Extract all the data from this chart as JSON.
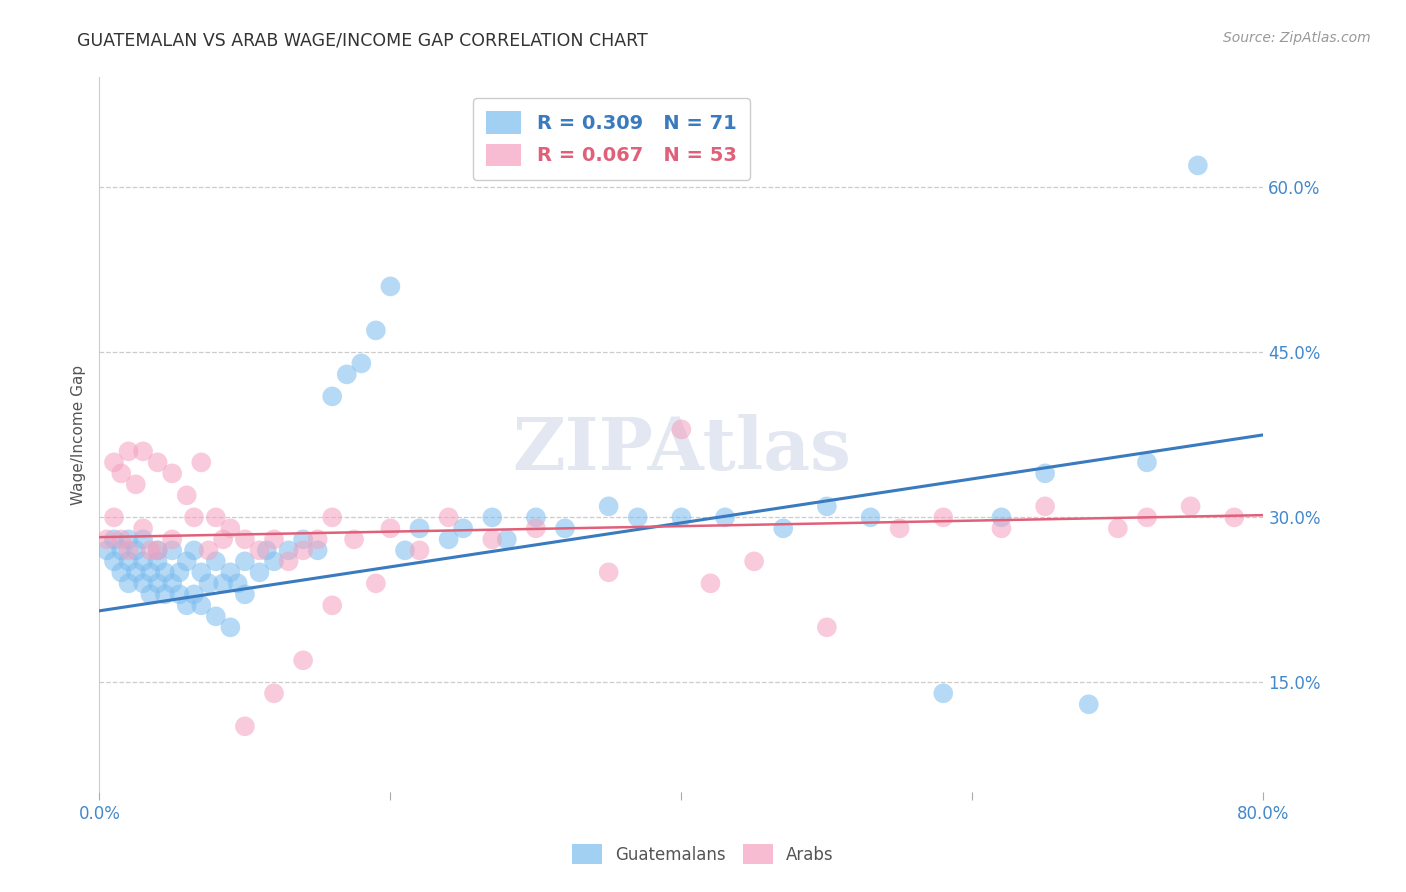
{
  "title": "GUATEMALAN VS ARAB WAGE/INCOME GAP CORRELATION CHART",
  "source": "Source: ZipAtlas.com",
  "ylabel": "Wage/Income Gap",
  "ytick_labels": [
    "15.0%",
    "30.0%",
    "45.0%",
    "60.0%"
  ],
  "ytick_values": [
    0.15,
    0.3,
    0.45,
    0.6
  ],
  "xlim": [
    0.0,
    0.8
  ],
  "ylim": [
    0.05,
    0.7
  ],
  "legend_blue_R": "R = 0.309",
  "legend_blue_N": "N = 71",
  "legend_pink_R": "R = 0.067",
  "legend_pink_N": "N = 53",
  "blue_color": "#7bbcee",
  "pink_color": "#f4a0be",
  "blue_line_color": "#3a7abf",
  "pink_line_color": "#e0607a",
  "axis_tick_color": "#4488cc",
  "watermark": "ZIPAtlas",
  "guatemalans_label": "Guatemalans",
  "arabs_label": "Arabs",
  "blue_scatter_x": [
    0.005,
    0.01,
    0.01,
    0.015,
    0.015,
    0.02,
    0.02,
    0.02,
    0.025,
    0.025,
    0.03,
    0.03,
    0.03,
    0.035,
    0.035,
    0.04,
    0.04,
    0.04,
    0.045,
    0.045,
    0.05,
    0.05,
    0.055,
    0.055,
    0.06,
    0.06,
    0.065,
    0.065,
    0.07,
    0.07,
    0.075,
    0.08,
    0.08,
    0.085,
    0.09,
    0.09,
    0.095,
    0.1,
    0.1,
    0.11,
    0.115,
    0.12,
    0.13,
    0.14,
    0.15,
    0.16,
    0.17,
    0.18,
    0.19,
    0.2,
    0.21,
    0.22,
    0.24,
    0.25,
    0.27,
    0.28,
    0.3,
    0.32,
    0.35,
    0.37,
    0.4,
    0.43,
    0.47,
    0.5,
    0.53,
    0.58,
    0.62,
    0.65,
    0.68,
    0.72,
    0.755
  ],
  "blue_scatter_y": [
    0.27,
    0.26,
    0.28,
    0.25,
    0.27,
    0.24,
    0.26,
    0.28,
    0.25,
    0.27,
    0.24,
    0.26,
    0.28,
    0.23,
    0.25,
    0.24,
    0.26,
    0.27,
    0.23,
    0.25,
    0.24,
    0.27,
    0.23,
    0.25,
    0.22,
    0.26,
    0.23,
    0.27,
    0.22,
    0.25,
    0.24,
    0.21,
    0.26,
    0.24,
    0.2,
    0.25,
    0.24,
    0.23,
    0.26,
    0.25,
    0.27,
    0.26,
    0.27,
    0.28,
    0.27,
    0.41,
    0.43,
    0.44,
    0.47,
    0.51,
    0.27,
    0.29,
    0.28,
    0.29,
    0.3,
    0.28,
    0.3,
    0.29,
    0.31,
    0.3,
    0.3,
    0.3,
    0.29,
    0.31,
    0.3,
    0.14,
    0.3,
    0.34,
    0.13,
    0.35,
    0.62
  ],
  "pink_scatter_x": [
    0.005,
    0.01,
    0.01,
    0.015,
    0.015,
    0.02,
    0.02,
    0.025,
    0.03,
    0.03,
    0.035,
    0.04,
    0.04,
    0.05,
    0.05,
    0.06,
    0.065,
    0.07,
    0.075,
    0.08,
    0.085,
    0.09,
    0.1,
    0.11,
    0.12,
    0.13,
    0.14,
    0.15,
    0.16,
    0.175,
    0.19,
    0.2,
    0.22,
    0.24,
    0.27,
    0.3,
    0.35,
    0.4,
    0.42,
    0.45,
    0.5,
    0.55,
    0.58,
    0.62,
    0.65,
    0.7,
    0.72,
    0.75,
    0.78,
    0.1,
    0.12,
    0.14,
    0.16
  ],
  "pink_scatter_y": [
    0.28,
    0.35,
    0.3,
    0.34,
    0.28,
    0.36,
    0.27,
    0.33,
    0.36,
    0.29,
    0.27,
    0.35,
    0.27,
    0.34,
    0.28,
    0.32,
    0.3,
    0.35,
    0.27,
    0.3,
    0.28,
    0.29,
    0.28,
    0.27,
    0.28,
    0.26,
    0.27,
    0.28,
    0.3,
    0.28,
    0.24,
    0.29,
    0.27,
    0.3,
    0.28,
    0.29,
    0.25,
    0.38,
    0.24,
    0.26,
    0.2,
    0.29,
    0.3,
    0.29,
    0.31,
    0.29,
    0.3,
    0.31,
    0.3,
    0.11,
    0.14,
    0.17,
    0.22
  ],
  "blue_regline_x": [
    0.0,
    0.8
  ],
  "blue_regline_y": [
    0.215,
    0.375
  ],
  "pink_regline_x": [
    0.0,
    0.8
  ],
  "pink_regline_y": [
    0.282,
    0.302
  ]
}
